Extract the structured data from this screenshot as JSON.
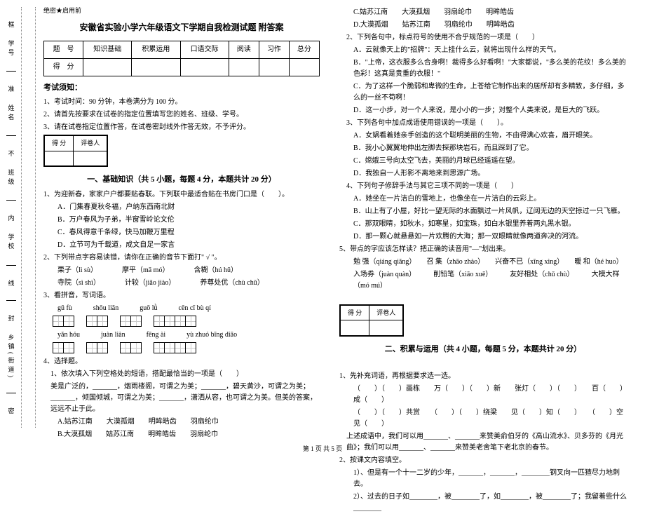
{
  "sidebar": {
    "items": [
      "学号",
      "姓名",
      "班级",
      "学校",
      "乡镇(街道)"
    ],
    "marks": [
      "框",
      "准",
      "不",
      "内",
      "线",
      "封",
      "密"
    ]
  },
  "secret_mark": "绝密★启用前",
  "title": "安徽省实验小学六年级语文下学期自我检测试题 附答案",
  "score_table": {
    "headers": [
      "题　号",
      "知识基础",
      "积累运用",
      "口语交际",
      "阅读",
      "习作",
      "总分"
    ],
    "row2": "得　分"
  },
  "notice_heading": "考试须知：",
  "notices": [
    "1、考试时间：90 分钟，本卷满分为 100 分。",
    "2、请首先按要求在试卷的指定位置填写您的姓名、班级、学号。",
    "3、请在试卷指定位置作答，在试卷密封线外作答无效，不予评分。"
  ],
  "mini_score": {
    "c1": "得 分",
    "c2": "评卷人"
  },
  "sectionA": {
    "title": "一、基础知识（共 5 小题，每题 4 分，本题共计 20 分）",
    "q1": "1、为迎新春，家家户户都要贴春联。下列联中最适合贴在书房门口是（　　）。",
    "q1opts": [
      "A．门集春夏秋冬福，户纳东西南北财",
      "B．万户春风为子弟，半窗雪岭论文伦",
      "C．春风得意千条绿，快马加鞭万里程",
      "D．立节可为千载道，成文自足一家言"
    ],
    "q2": "2、下列带点字容易读错，请你在正确的音节下面打\" √ \"。",
    "q2lines": [
      "栗子（lì  sù）　　　　摩平（mā  mó）　　　　含糊（hú  hū）",
      "寺院（sì  shì）　　　　计较（jiǎo jiào）　　　　养尊处优（chù  chǔ）"
    ],
    "q3": "3、看拼音，写词语。",
    "pinyin_groups": [
      [
        "gū  fù",
        "shōu liǎn",
        "guō  lǜ",
        "cēn  cī  bù  qí"
      ],
      [
        "yǎn  hóu",
        "juàn liàn",
        "fēng ài",
        "yù zhuó bīng diāo"
      ]
    ],
    "grid_counts": [
      [
        2,
        2,
        2,
        4
      ],
      [
        2,
        2,
        2,
        4
      ]
    ],
    "q4": "4、选择题。",
    "q4a": "1、依次填入下列空格处的短语，搭配最恰当的一项是（　　）",
    "q4a_text": "美是广泛的，_______，烟雨楼阁，可谓之为美；_______，碧天黄沙，可谓之为美；_______，倾国倾城，可谓之为美；_______，潇洒从容，也可谓之为美。但美的答案，远远不止于此。",
    "q4a_opts": [
      "A.姑苏江南　　大漠孤烟　　明眸皓齿　　羽扇纶巾",
      "B.大漠孤烟　　姑苏江南　　明眸皓齿　　羽扇纶巾"
    ]
  },
  "colR": {
    "q4a_opts_cont": [
      "C.姑苏江南　　大漠孤烟　　羽扇纶巾　　明眸皓齿",
      "D.大漠孤烟　　姑苏江南　　羽扇纶巾　　明眸皓齿"
    ],
    "q4b": "2、下列各句中，标点符号的使用不合乎规范的一项是（　　）",
    "q4b_opts": [
      "A．云就像天上的\"招牌\"：天上挂什么云，就将出现什么样的天气。",
      "B．\"上帝，这衣服多么合身啊！裁得多么好看啊！\"大家都说，\"多么美的花纹！多么美的色彩！这真是贵重的衣服！\"",
      "C．为了这样一个脆弱和卑微的生命，上苍给它制作出来的居所却有多精致，多仔细，多么的一丝不苟啊！",
      "D．这一小步，对一个人来说，是小小的一步；对整个人类来说，是巨大的飞跃。"
    ],
    "q4c": "3、下列各句中加点成语使用错误的一项是（　　）。",
    "q4c_opts": [
      "A．女娲看着她亲手创造的这个聪明美丽的生物，不由得满心欢喜，眉开眼笑。",
      "B．我小心翼翼地伸出左脚去探那块岩石，而且踩到了它。",
      "C．嫦娥三号向太空飞去，美丽的月球已经遥遥在望。",
      "D．我独自一人形影不离地来到思源广场。"
    ],
    "q4d": "4、下列句子修辞手法与其它三项不同的一项是（　　）",
    "q4d_opts": [
      "A．她坐在一片洁白的雪地上，也像坐在一片洁白的云彩上。",
      "B．山上有了小屋，好比一望无际的水面飘过一片风帆，辽阔无边的天空掠过一只飞雁。",
      "C．那双眼睛，如秋水，如寒星，如宝珠，如白水银里养着两丸黑水银。",
      "D．那一颗心就悬悬如一片欢腾的大海；那一双眼睛就像两道奔决的河流。"
    ],
    "q5": "5、带点的字应该怎样读？把正确的读音用\"—\"划出来。",
    "q5_line1": "勉 强（qiáng qiǎng）　　召 集（zhāo zhào）　　兴奋不已（xīng xìng）　　暖 和（hé huo）",
    "q5_line2": "入场券（juàn quàn）　　　削铅笔（xiāo xuē）　　　友好相处（chǔ chù）　　　大模大样（mó mú）"
  },
  "sectionB": {
    "title": "二、积累与运用（共 4 小题，每题 5 分，本题共计 20 分）",
    "q1": "1、先补充词语，再根据要求选一选。",
    "q1_lines": [
      "（　　）（　　）画栋　　万（　　）（　　）新　　张灯（　　）（　　）　　百（　　）成（　　）",
      "（　　）（　　）共赏　　（　　）（　　）绕梁　　见（　　）知（　　）　　（　　）空见（　　）"
    ],
    "q1_text": "上述成语中，我们可以用_______、_______来赞美俞伯牙的《高山流水》、贝多芬的《月光曲》；我们可以用_______、_______来赞美老舍笔下老北京的春节。",
    "q2": "2、按课文内容填空。",
    "q2_items": [
      "1）、但是有一个十一二岁的少年，_______，_______，________钢叉向一匹猹尽力地刺去。",
      "2）、过去的日子如________，被________了，如________，被________了；我留着些什么________"
    ]
  },
  "footer": "第 1 页 共 5 页"
}
